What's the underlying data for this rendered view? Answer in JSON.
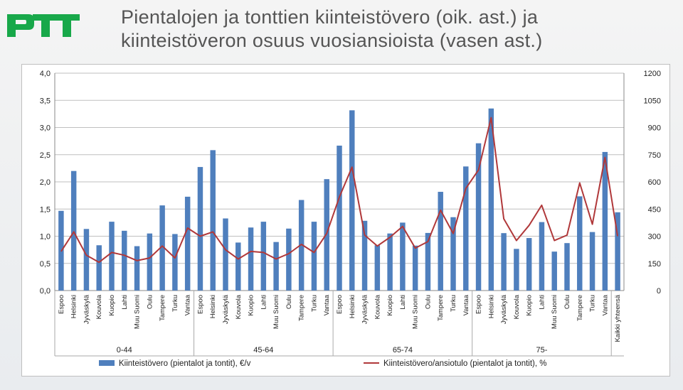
{
  "logo_text": "PTT",
  "title": {
    "line1": "Pientalojen ja tonttien kiinteistövero (oik. ast.) ja",
    "line2": "kiinteistöveron osuus vuosiansioista (vasen ast.)"
  },
  "colors": {
    "bar": "#4f7fbd",
    "line": "#b0383a",
    "logo": "#18a84a",
    "grid": "#bfbfbf"
  },
  "chart_data": {
    "type": "bar",
    "title": "Pientalojen ja tonttien kiinteistövero (oik. ast.) ja kiinteistöveron osuus vuosiansioista (vasen ast.)",
    "categories": [
      "Espoo",
      "Helsinki",
      "Jyväskylä",
      "Kouvola",
      "Kuopio",
      "Lahti",
      "Muu Suomi",
      "Oulu",
      "Tampere",
      "Turku",
      "Vantaa",
      "Espoo",
      "Helsinki",
      "Jyväskylä",
      "Kouvola",
      "Kuopio",
      "Lahti",
      "Muu Suomi",
      "Oulu",
      "Tampere",
      "Turku",
      "Vantaa",
      "Espoo",
      "Helsinki",
      "Jyväskylä",
      "Kouvola",
      "Kuopio",
      "Lahti",
      "Muu Suomi",
      "Oulu",
      "Tampere",
      "Turku",
      "Vantaa",
      "Espoo",
      "Helsinki",
      "Jyväskylä",
      "Kouvola",
      "Kuopio",
      "Lahti",
      "Muu Suomi",
      "Oulu",
      "Tampere",
      "Turku",
      "Vantaa",
      "Kaikki yhteensä"
    ],
    "groups": [
      {
        "label": "0-44",
        "start": 0,
        "end": 10
      },
      {
        "label": "45-64",
        "start": 11,
        "end": 21
      },
      {
        "label": "65-74",
        "start": 22,
        "end": 32
      },
      {
        "label": "75-",
        "start": 33,
        "end": 43
      }
    ],
    "series": [
      {
        "name": "Kiinteistövero (pientalot ja tontit), €/v",
        "type": "bar",
        "axis": "right",
        "values": [
          440,
          660,
          340,
          250,
          380,
          330,
          245,
          315,
          470,
          312,
          518,
          682,
          775,
          398,
          265,
          348,
          380,
          268,
          342,
          500,
          380,
          615,
          800,
          995,
          385,
          250,
          315,
          375,
          248,
          318,
          545,
          405,
          685,
          813,
          1005,
          317,
          230,
          290,
          378,
          215,
          262,
          520,
          323,
          765,
          432
        ]
      },
      {
        "name": "Kiinteistövero/ansiotulo (pientalot ja tontit), %",
        "type": "line",
        "axis": "left",
        "values": [
          0.72,
          1.08,
          0.65,
          0.52,
          0.7,
          0.65,
          0.55,
          0.6,
          0.82,
          0.6,
          1.15,
          1.0,
          1.08,
          0.75,
          0.58,
          0.72,
          0.7,
          0.58,
          0.68,
          0.85,
          0.7,
          1.05,
          1.72,
          2.27,
          1.02,
          0.82,
          0.98,
          1.18,
          0.78,
          0.9,
          1.48,
          1.05,
          1.88,
          2.22,
          3.18,
          1.32,
          0.92,
          1.2,
          1.57,
          0.92,
          1.02,
          1.98,
          1.22,
          2.45,
          1.0
        ]
      }
    ],
    "y_left": {
      "min": 0,
      "max": 4,
      "step": 0.5,
      "tick_labels": [
        "0,0",
        "0,5",
        "1,0",
        "1,5",
        "2,0",
        "2,5",
        "3,0",
        "3,5",
        "4,0"
      ]
    },
    "y_right": {
      "min": 0,
      "max": 1200,
      "step": 150,
      "tick_labels": [
        "0",
        "150",
        "300",
        "450",
        "600",
        "750",
        "900",
        "1050",
        "1200"
      ]
    },
    "grid": true,
    "legend_position": "bottom"
  }
}
